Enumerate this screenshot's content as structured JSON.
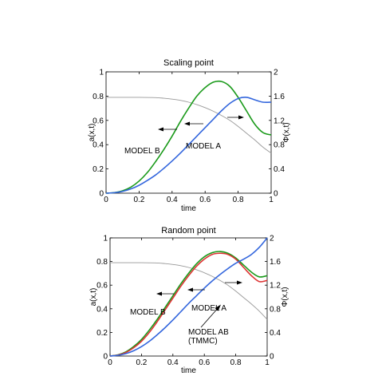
{
  "chart_data": [
    {
      "type": "line",
      "title": "Scaling point",
      "xlabel": "time",
      "ylabel_left": "a(x,t)",
      "ylabel_right": "Φ(x,t)",
      "xlim": [
        0,
        1
      ],
      "ylim_left": [
        0,
        1
      ],
      "ylim_right": [
        0,
        2
      ],
      "xticks": [
        "0",
        "0.2",
        "0.4",
        "0.6",
        "0.8",
        "1"
      ],
      "yticks_left": [
        "0",
        "0.2",
        "0.4",
        "0.6",
        "0.8",
        "1"
      ],
      "yticks_right": [
        "0",
        "0.4",
        "0.8",
        "1.2",
        "1.6",
        "2"
      ],
      "grid": false,
      "series": [
        {
          "name": "MODEL B",
          "axis": "left",
          "color": "#1a9a1a",
          "x": [
            0,
            0.05,
            0.1,
            0.15,
            0.2,
            0.25,
            0.3,
            0.35,
            0.4,
            0.45,
            0.5,
            0.55,
            0.6,
            0.65,
            0.7,
            0.75,
            0.8,
            0.85,
            0.9,
            0.95,
            1.0
          ],
          "y": [
            0,
            0.005,
            0.02,
            0.05,
            0.1,
            0.17,
            0.26,
            0.36,
            0.47,
            0.59,
            0.7,
            0.8,
            0.87,
            0.915,
            0.92,
            0.88,
            0.79,
            0.68,
            0.57,
            0.5,
            0.48
          ]
        },
        {
          "name": "MODEL A",
          "axis": "left",
          "color": "#3366dd",
          "x": [
            0,
            0.05,
            0.1,
            0.15,
            0.2,
            0.25,
            0.3,
            0.35,
            0.4,
            0.45,
            0.5,
            0.55,
            0.6,
            0.65,
            0.7,
            0.75,
            0.8,
            0.85,
            0.9,
            0.95,
            1.0
          ],
          "y": [
            0,
            0.004,
            0.015,
            0.035,
            0.065,
            0.105,
            0.15,
            0.205,
            0.265,
            0.33,
            0.4,
            0.47,
            0.54,
            0.61,
            0.68,
            0.74,
            0.78,
            0.79,
            0.77,
            0.75,
            0.75
          ]
        },
        {
          "name": "",
          "axis": "right",
          "color": "#999999",
          "x": [
            0,
            0.1,
            0.2,
            0.3,
            0.35,
            0.4,
            0.45,
            0.5,
            0.55,
            0.6,
            0.65,
            0.7,
            0.75,
            0.8,
            0.85,
            0.9,
            0.95,
            1.0
          ],
          "y": [
            1.58,
            1.58,
            1.58,
            1.575,
            1.565,
            1.55,
            1.53,
            1.5,
            1.46,
            1.41,
            1.35,
            1.28,
            1.2,
            1.1,
            0.99,
            0.88,
            0.76,
            0.66
          ]
        }
      ],
      "annotations": [
        {
          "text": "MODEL B",
          "x": 0.13,
          "y": 0.35
        },
        {
          "text": "MODEL A",
          "x": 0.48,
          "y": 0.38
        }
      ]
    },
    {
      "type": "line",
      "title": "Random point",
      "xlabel": "time",
      "ylabel_left": "a(x,t)",
      "ylabel_right": "Φ(x,t)",
      "xlim": [
        0,
        1
      ],
      "ylim_left": [
        0,
        1
      ],
      "ylim_right": [
        0,
        2
      ],
      "xticks": [
        "0",
        "0.2",
        "0.4",
        "0.6",
        "0.8",
        "1"
      ],
      "yticks_left": [
        "0",
        "0.2",
        "0.4",
        "0.6",
        "0.8",
        "1"
      ],
      "yticks_right": [
        "0",
        "0.4",
        "0.8",
        "1.2",
        "1.6",
        "2"
      ],
      "grid": false,
      "series": [
        {
          "name": "MODEL B",
          "axis": "left",
          "color": "#1a9a1a",
          "x": [
            0,
            0.05,
            0.1,
            0.15,
            0.2,
            0.25,
            0.3,
            0.35,
            0.4,
            0.45,
            0.5,
            0.55,
            0.6,
            0.65,
            0.7,
            0.75,
            0.8,
            0.85,
            0.9,
            0.95,
            1.0
          ],
          "y": [
            0,
            0.01,
            0.035,
            0.08,
            0.14,
            0.22,
            0.31,
            0.41,
            0.51,
            0.61,
            0.7,
            0.78,
            0.84,
            0.875,
            0.885,
            0.87,
            0.83,
            0.77,
            0.71,
            0.67,
            0.68
          ]
        },
        {
          "name": "MODEL AB (TMMC)",
          "axis": "left",
          "color": "#dd3333",
          "x": [
            0,
            0.05,
            0.1,
            0.15,
            0.2,
            0.25,
            0.3,
            0.35,
            0.4,
            0.45,
            0.5,
            0.55,
            0.6,
            0.65,
            0.7,
            0.75,
            0.8,
            0.85,
            0.9,
            0.95,
            1.0
          ],
          "y": [
            0,
            0.008,
            0.03,
            0.07,
            0.125,
            0.2,
            0.29,
            0.39,
            0.49,
            0.59,
            0.68,
            0.76,
            0.82,
            0.86,
            0.87,
            0.86,
            0.82,
            0.75,
            0.68,
            0.63,
            0.64
          ]
        },
        {
          "name": "MODEL A",
          "axis": "left",
          "color": "#3366dd",
          "x": [
            0,
            0.05,
            0.1,
            0.15,
            0.2,
            0.25,
            0.3,
            0.35,
            0.4,
            0.45,
            0.5,
            0.55,
            0.6,
            0.65,
            0.7,
            0.75,
            0.8,
            0.85,
            0.9,
            0.95,
            1.0
          ],
          "y": [
            0,
            0.006,
            0.02,
            0.045,
            0.08,
            0.125,
            0.18,
            0.24,
            0.305,
            0.375,
            0.445,
            0.51,
            0.575,
            0.635,
            0.69,
            0.74,
            0.785,
            0.82,
            0.86,
            0.92,
            1.0
          ]
        },
        {
          "name": "",
          "axis": "right",
          "color": "#999999",
          "x": [
            0,
            0.1,
            0.2,
            0.3,
            0.35,
            0.4,
            0.45,
            0.5,
            0.55,
            0.6,
            0.65,
            0.7,
            0.75,
            0.8,
            0.85,
            0.9,
            0.95,
            1.0
          ],
          "y": [
            1.58,
            1.58,
            1.58,
            1.575,
            1.565,
            1.55,
            1.53,
            1.5,
            1.46,
            1.41,
            1.35,
            1.28,
            1.2,
            1.1,
            0.99,
            0.88,
            0.76,
            0.62
          ]
        }
      ],
      "annotations": [
        {
          "text": "MODEL B",
          "x": 0.1,
          "y": 0.33
        },
        {
          "text": "MODEL A",
          "x": 0.5,
          "y": 0.37
        },
        {
          "text": "MODEL AB",
          "x": 0.47,
          "y": 0.2
        },
        {
          "text": "(TMMC)",
          "x": 0.47,
          "y": 0.12
        }
      ]
    }
  ]
}
